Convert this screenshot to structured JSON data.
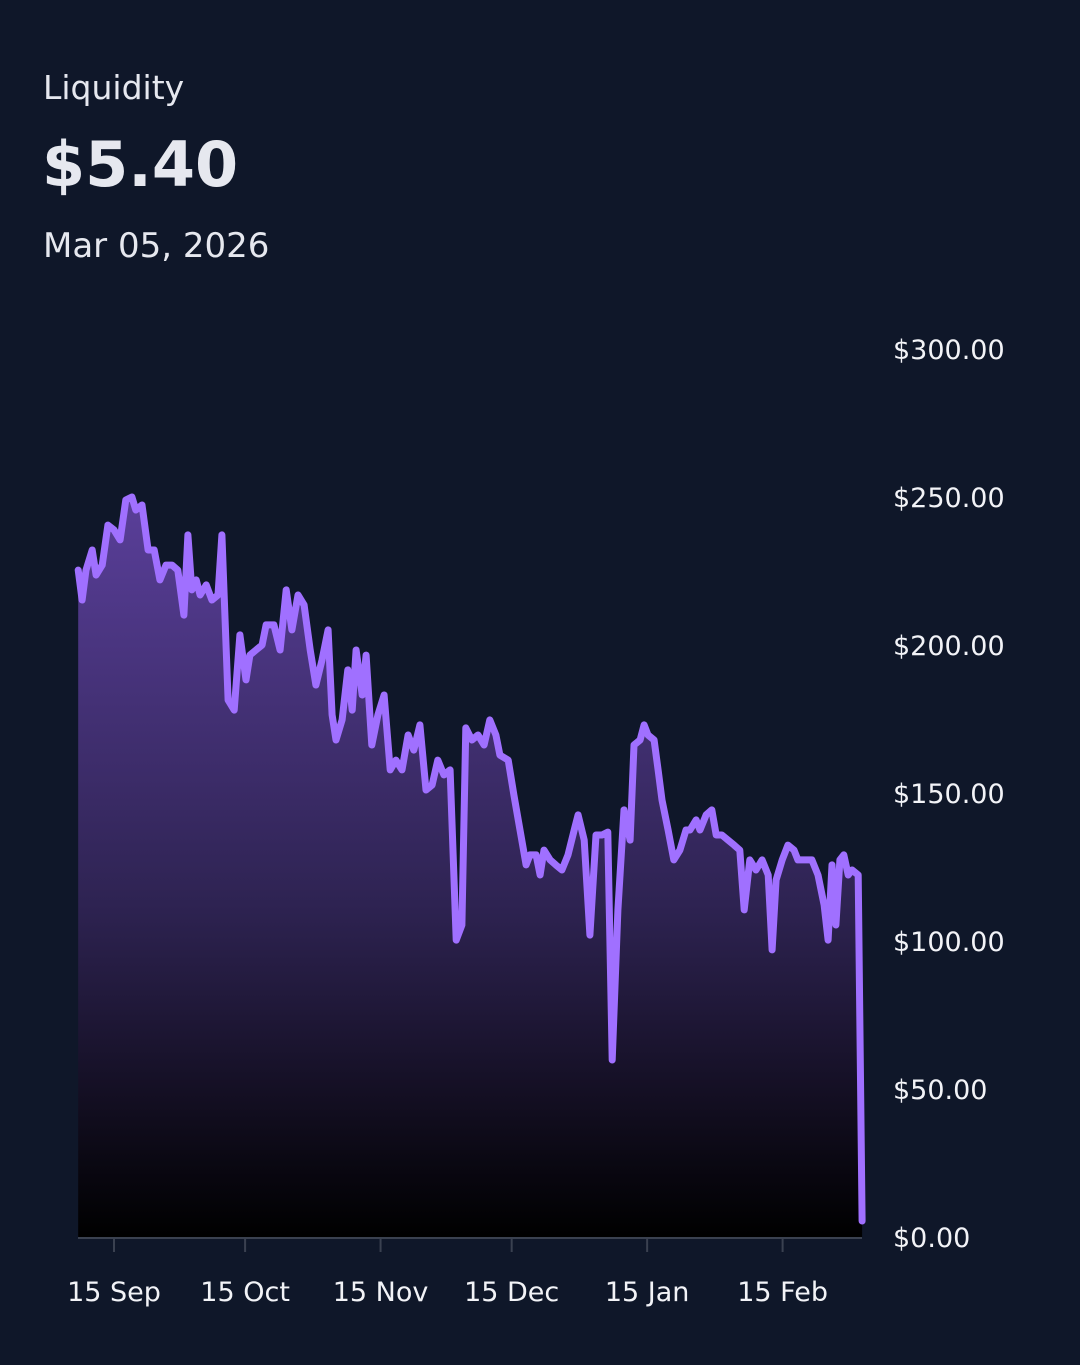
{
  "header": {
    "title": "Liquidity",
    "current_value": "$5.40",
    "date": "Mar 05, 2026"
  },
  "colors": {
    "background": "#0f1729",
    "line": "#a070ff",
    "fill_top": "#5a3f9a",
    "fill_bottom": "#000000"
  },
  "chart_data": {
    "type": "area",
    "title": "Liquidity",
    "xlabel": "",
    "ylabel": "",
    "x_unit": "days since 15 Sep 2025",
    "ylim": [
      0,
      300
    ],
    "xlim": [
      -8.2,
      171.2
    ],
    "y_ticks": [
      0,
      50,
      100,
      150,
      200,
      250,
      300
    ],
    "y_tick_labels": [
      "$0.00",
      "$50.00",
      "$100.00",
      "$150.00",
      "$200.00",
      "$250.00",
      "$300.00"
    ],
    "x_ticks": [
      0,
      30,
      61,
      91,
      122,
      153
    ],
    "x_tick_labels": [
      "15 Sep",
      "15 Oct",
      "15 Nov",
      "15 Dec",
      "15 Jan",
      "15 Feb"
    ],
    "grid": false,
    "x": [
      -8.2,
      -7.3,
      -6.4,
      -5.0,
      -4.1,
      -2.7,
      -1.4,
      0,
      1.4,
      2.7,
      4.1,
      5.0,
      6.4,
      7.8,
      9.2,
      10.5,
      11.9,
      13.3,
      14.6,
      16.0,
      16.9,
      17.8,
      18.8,
      19.7,
      21.1,
      22.4,
      23.8,
      24.7,
      26.1,
      27.5,
      28.8,
      30.2,
      31.1,
      32.5,
      33.9,
      34.8,
      36.6,
      38.0,
      39.4,
      40.7,
      42.1,
      43.5,
      44.9,
      46.2,
      47.6,
      49.0,
      49.9,
      50.8,
      52.2,
      53.5,
      54.5,
      55.4,
      56.8,
      57.7,
      59.0,
      60.4,
      61.8,
      63.2,
      64.5,
      65.9,
      67.3,
      68.6,
      70.0,
      71.4,
      72.8,
      74.1,
      75.5,
      76.9,
      78.3,
      79.6,
      80.5,
      81.9,
      83.3,
      84.7,
      86.0,
      87.4,
      88.3,
      90.2,
      91.5,
      92.9,
      94.3,
      95.2,
      96.6,
      97.5,
      98.4,
      99.8,
      101.1,
      102.5,
      103.9,
      105.3,
      106.2,
      107.6,
      108.9,
      110.3,
      111.7,
      113.0,
      114.0,
      115.3,
      116.7,
      118.1,
      119.0,
      120.4,
      121.3,
      122.2,
      123.6,
      124.5,
      125.4,
      126.8,
      128.1,
      129.5,
      130.9,
      131.8,
      133.2,
      134.1,
      135.5,
      136.8,
      137.8,
      139.1,
      140.5,
      141.9,
      143.2,
      144.2,
      145.5,
      146.9,
      148.3,
      149.7,
      150.6,
      151.5,
      152.9,
      154.2,
      155.6,
      156.5,
      158.4,
      159.7,
      161.1,
      162.5,
      163.4,
      164.3,
      165.2,
      166.1,
      167.0,
      168.0,
      168.9,
      170.3,
      171.2
    ],
    "values": [
      225.3,
      215.2,
      225.3,
      232.1,
      223.6,
      227.0,
      240.5,
      238.9,
      235.5,
      249.0,
      250.0,
      245.6,
      247.3,
      232.1,
      232.1,
      222.0,
      227.0,
      227.0,
      225.3,
      210.1,
      237.2,
      218.6,
      222.0,
      216.9,
      220.3,
      215.2,
      216.9,
      237.2,
      181.4,
      178.0,
      203.4,
      188.2,
      196.6,
      198.3,
      200.0,
      206.8,
      206.8,
      198.3,
      218.6,
      205.1,
      216.9,
      213.5,
      198.3,
      186.5,
      194.9,
      205.1,
      176.4,
      167.9,
      174.7,
      191.6,
      178.0,
      198.3,
      183.1,
      196.6,
      166.2,
      176.4,
      183.1,
      157.8,
      161.1,
      157.8,
      169.6,
      164.5,
      173.0,
      151.0,
      152.7,
      161.1,
      156.1,
      157.8,
      100.3,
      105.4,
      172.0,
      167.9,
      169.6,
      166.2,
      174.7,
      169.6,
      162.8,
      161.1,
      149.3,
      137.5,
      125.7,
      129.1,
      129.1,
      122.3,
      130.7,
      127.4,
      125.7,
      124.0,
      129.1,
      137.5,
      142.6,
      134.1,
      102.0,
      135.8,
      135.8,
      136.8,
      59.8,
      110.5,
      144.3,
      134.1,
      166.2,
      167.9,
      173.0,
      169.6,
      167.9,
      157.8,
      147.6,
      137.5,
      127.4,
      130.7,
      137.5,
      137.5,
      140.9,
      137.5,
      142.6,
      144.3,
      135.8,
      135.8,
      134.1,
      132.4,
      130.7,
      110.5,
      127.4,
      124.0,
      127.4,
      122.3,
      97.0,
      120.6,
      127.4,
      132.4,
      130.7,
      127.4,
      127.4,
      127.4,
      122.3,
      112.2,
      100.3,
      125.7,
      105.4,
      127.4,
      129.1,
      122.3,
      124.0,
      122.3,
      5.4
    ]
  }
}
